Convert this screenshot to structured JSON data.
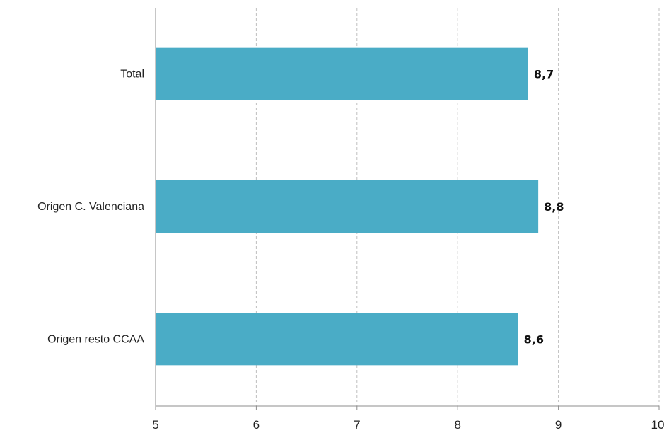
{
  "chart_data": {
    "type": "bar",
    "orientation": "horizontal",
    "categories": [
      "Total",
      "Origen C. Valenciana",
      "Origen resto CCAA"
    ],
    "values": [
      8.7,
      8.8,
      8.6
    ],
    "value_labels": [
      "8,7",
      "8,8",
      "8,6"
    ],
    "xlim": [
      5,
      10
    ],
    "x_ticks": [
      5,
      6,
      7,
      8,
      9,
      10
    ],
    "x_tick_labels": [
      "5",
      "6",
      "7",
      "8",
      "9",
      "10"
    ],
    "title": "",
    "xlabel": "",
    "ylabel": "",
    "grid": "vertical-dashed",
    "legend": "none",
    "bar_color": "#4aacc6",
    "grid_color": "#bfbfbf",
    "axis_color": "#8c8c8c"
  }
}
